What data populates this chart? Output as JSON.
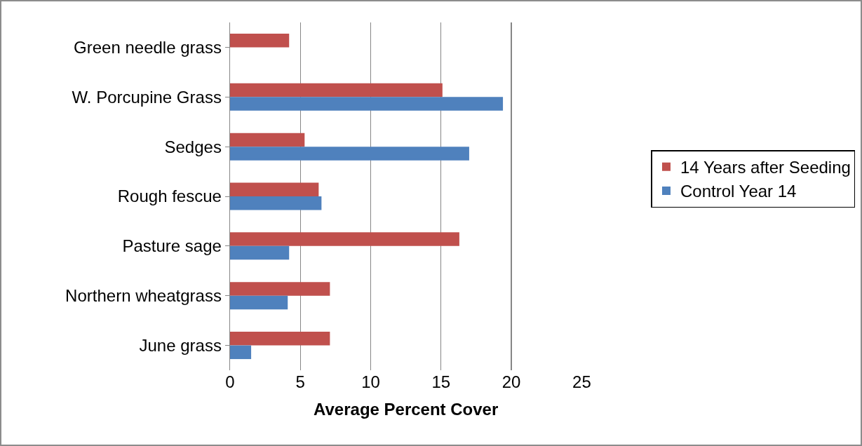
{
  "chart_data": {
    "type": "bar",
    "orientation": "horizontal",
    "xlabel": "Average Percent Cover",
    "categories": [
      "Green needle grass",
      "W. Porcupine Grass",
      "Sedges",
      "Rough fescue",
      "Pasture sage",
      "Northern wheatgrass",
      "June grass"
    ],
    "series": [
      {
        "name": "14 Years after Seeding",
        "color": "#c0504d",
        "values": [
          4.2,
          15.1,
          5.3,
          6.3,
          16.3,
          7.1,
          7.1
        ]
      },
      {
        "name": "Control Year 14",
        "color": "#4f81bd",
        "values": [
          null,
          19.4,
          17.0,
          6.5,
          4.2,
          4.1,
          1.5
        ]
      }
    ],
    "xlim": [
      0,
      25
    ],
    "xticks": [
      0,
      5,
      10,
      15,
      20,
      25
    ],
    "grid": "x",
    "legend": "right"
  }
}
